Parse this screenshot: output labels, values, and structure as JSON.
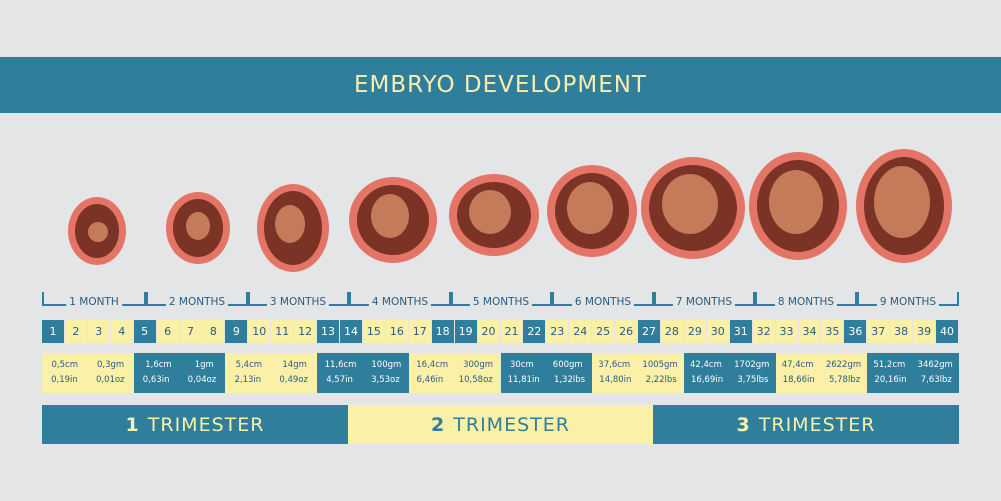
{
  "title": "EMBRYO DEVELOPMENT",
  "colors": {
    "teal": "#2f7e9c",
    "yellow": "#faf0a8",
    "background": "#e4e5e6"
  },
  "months": [
    "1 MONTH",
    "2 MONTHS",
    "3 MONTHS",
    "4 MONTHS",
    "5 MONTHS",
    "6 MONTHS",
    "7 MONTHS",
    "8 MONTHS",
    "9 MONTHS"
  ],
  "weeks": [
    "1",
    "2",
    "3",
    "4",
    "5",
    "6",
    "7",
    "8",
    "9",
    "10",
    "11",
    "12",
    "13",
    "14",
    "15",
    "16",
    "17",
    "18",
    "19",
    "20",
    "21",
    "22",
    "23",
    "24",
    "25",
    "26",
    "27",
    "28",
    "29",
    "30",
    "31",
    "32",
    "33",
    "34",
    "35",
    "36",
    "37",
    "38",
    "39",
    "40"
  ],
  "sizes": [
    {
      "a1": "0,5cm",
      "b1": "0,3gm",
      "a2": "0,19in",
      "b2": "0,01oz"
    },
    {
      "a1": "1,6cm",
      "b1": "1gm",
      "a2": "0,63in",
      "b2": "0,04oz"
    },
    {
      "a1": "5,4cm",
      "b1": "14gm",
      "a2": "2,13in",
      "b2": "0,49oz"
    },
    {
      "a1": "11,6cm",
      "b1": "100gm",
      "a2": "4,57in",
      "b2": "3,53oz"
    },
    {
      "a1": "16,4cm",
      "b1": "300gm",
      "a2": "6,46in",
      "b2": "10,58oz"
    },
    {
      "a1": "30cm",
      "b1": "600gm",
      "a2": "11,81in",
      "b2": "1,32lbs"
    },
    {
      "a1": "37,6cm",
      "b1": "1005gm",
      "a2": "14,80in",
      "b2": "2,22lbs"
    },
    {
      "a1": "42,4cm",
      "b1": "1702gm",
      "a2": "16,69in",
      "b2": "3,75lbs"
    },
    {
      "a1": "47,4cm",
      "b1": "2622gm",
      "a2": "18,66in",
      "b2": "5,78lbz"
    },
    {
      "a1": "51,2cm",
      "b1": "3462gm",
      "a2": "20,16in",
      "b2": "7,63lbz"
    }
  ],
  "trimesters": [
    {
      "num": "1",
      "label": "TRIMESTER"
    },
    {
      "num": "2",
      "label": "TRIMESTER"
    },
    {
      "num": "3",
      "label": "TRIMESTER"
    }
  ]
}
